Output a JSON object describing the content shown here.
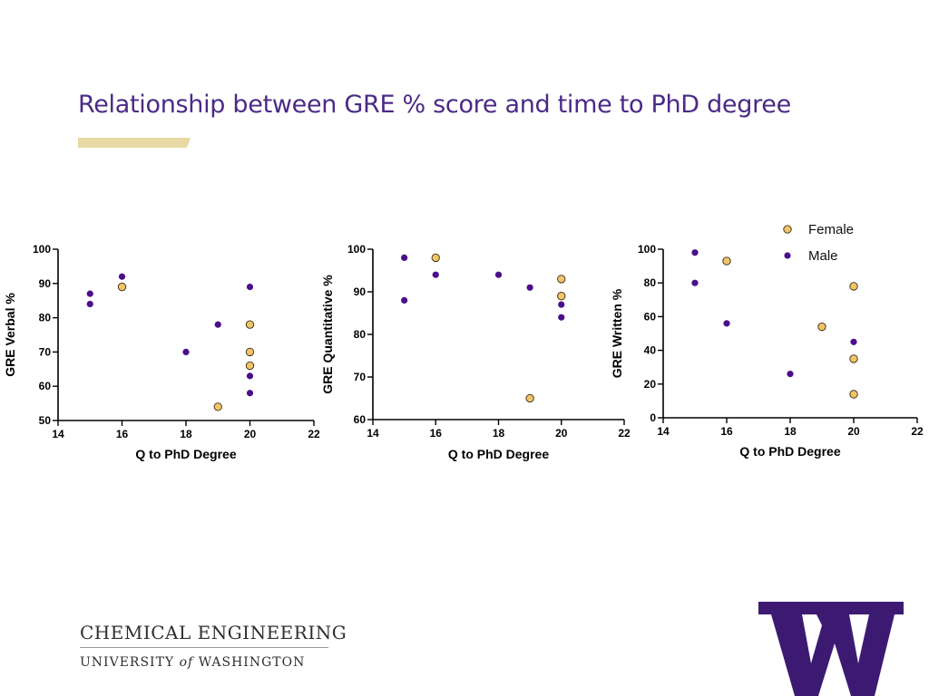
{
  "slide": {
    "title": "Relationship between GRE % score and time to PhD degree",
    "accent_color": "#e8d8a3",
    "title_color": "#4b2a85"
  },
  "legend": {
    "position": "top-right",
    "items": [
      {
        "label": "Female",
        "color": "#f1c46a"
      },
      {
        "label": "Male",
        "color": "#4b0f8c"
      }
    ]
  },
  "chart_data": [
    {
      "type": "scatter",
      "xlabel": "Q to PhD Degree",
      "ylabel": "GRE Verbal %",
      "xlim": [
        14,
        22
      ],
      "ylim": [
        50,
        100
      ],
      "xticks": [
        14,
        16,
        18,
        20,
        22
      ],
      "yticks": [
        50,
        60,
        70,
        80,
        90,
        100
      ],
      "series": [
        {
          "name": "Female",
          "color": "#f1c46a",
          "x": [
            16,
            19,
            20,
            20,
            20
          ],
          "y": [
            89,
            54,
            78,
            70,
            66
          ]
        },
        {
          "name": "Male",
          "color": "#4b0f8c",
          "x": [
            15,
            15,
            16,
            18,
            19,
            20,
            20,
            20
          ],
          "y": [
            87,
            84,
            92,
            70,
            78,
            89,
            63,
            58
          ]
        }
      ]
    },
    {
      "type": "scatter",
      "xlabel": "Q to PhD Degree",
      "ylabel": "GRE Quantitative %",
      "xlim": [
        14,
        22
      ],
      "ylim": [
        60,
        100
      ],
      "xticks": [
        14,
        16,
        18,
        20,
        22
      ],
      "yticks": [
        60,
        70,
        80,
        90,
        100
      ],
      "series": [
        {
          "name": "Female",
          "color": "#f1c46a",
          "x": [
            16,
            19,
            20,
            20
          ],
          "y": [
            98,
            65,
            93,
            89
          ]
        },
        {
          "name": "Male",
          "color": "#4b0f8c",
          "x": [
            15,
            15,
            16,
            18,
            19,
            20,
            20
          ],
          "y": [
            98,
            88,
            94,
            94,
            91,
            87,
            84
          ]
        }
      ]
    },
    {
      "type": "scatter",
      "xlabel": "Q to PhD Degree",
      "ylabel": "GRE Written %",
      "xlim": [
        14,
        22
      ],
      "ylim": [
        0,
        100
      ],
      "xticks": [
        14,
        16,
        18,
        20,
        22
      ],
      "yticks": [
        0,
        20,
        40,
        60,
        80,
        100
      ],
      "series": [
        {
          "name": "Female",
          "color": "#f1c46a",
          "x": [
            16,
            19,
            20,
            20,
            20
          ],
          "y": [
            93,
            54,
            78,
            35,
            14
          ]
        },
        {
          "name": "Male",
          "color": "#4b0f8c",
          "x": [
            15,
            15,
            16,
            18,
            20
          ],
          "y": [
            98,
            80,
            56,
            26,
            45
          ]
        }
      ]
    }
  ],
  "footer": {
    "department": "CHEMICAL ENGINEERING",
    "university_pre": "UNIVERSITY",
    "university_of": "of",
    "university_post": "WASHINGTON",
    "logo_letter": "W",
    "logo_color": "#3d1a72"
  }
}
